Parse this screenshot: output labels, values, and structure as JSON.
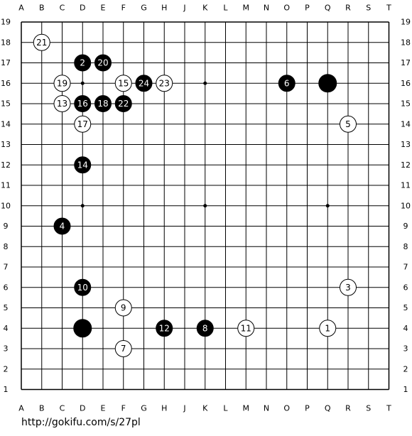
{
  "board": {
    "columns": [
      "A",
      "B",
      "C",
      "D",
      "E",
      "F",
      "G",
      "H",
      "J",
      "K",
      "L",
      "M",
      "N",
      "O",
      "P",
      "Q",
      "R",
      "S",
      "T"
    ],
    "rows": [
      19,
      18,
      17,
      16,
      15,
      14,
      13,
      12,
      11,
      10,
      9,
      8,
      7,
      6,
      5,
      4,
      3,
      2,
      1
    ],
    "stones": [
      {
        "col": "D",
        "row": 17,
        "color": "black",
        "label": "2"
      },
      {
        "col": "E",
        "row": 17,
        "color": "black",
        "label": "20"
      },
      {
        "col": "G",
        "row": 16,
        "color": "black",
        "label": "24"
      },
      {
        "col": "O",
        "row": 16,
        "color": "black",
        "label": "6"
      },
      {
        "col": "Q",
        "row": 16,
        "color": "black"
      },
      {
        "col": "D",
        "row": 15,
        "color": "black",
        "label": "16"
      },
      {
        "col": "E",
        "row": 15,
        "color": "black",
        "label": "18"
      },
      {
        "col": "F",
        "row": 15,
        "color": "black",
        "label": "22"
      },
      {
        "col": "D",
        "row": 12,
        "color": "black",
        "label": "14"
      },
      {
        "col": "C",
        "row": 9,
        "color": "black",
        "label": "4"
      },
      {
        "col": "D",
        "row": 6,
        "color": "black",
        "label": "10"
      },
      {
        "col": "D",
        "row": 4,
        "color": "black"
      },
      {
        "col": "H",
        "row": 4,
        "color": "black",
        "label": "12"
      },
      {
        "col": "K",
        "row": 4,
        "color": "black",
        "label": "8"
      },
      {
        "col": "B",
        "row": 18,
        "color": "white",
        "label": "21"
      },
      {
        "col": "C",
        "row": 16,
        "color": "white",
        "label": "19"
      },
      {
        "col": "F",
        "row": 16,
        "color": "white",
        "label": "15"
      },
      {
        "col": "H",
        "row": 16,
        "color": "white",
        "label": "23"
      },
      {
        "col": "C",
        "row": 15,
        "color": "white",
        "label": "13"
      },
      {
        "col": "D",
        "row": 14,
        "color": "white",
        "label": "17"
      },
      {
        "col": "R",
        "row": 14,
        "color": "white",
        "label": "5"
      },
      {
        "col": "R",
        "row": 6,
        "color": "white",
        "label": "3"
      },
      {
        "col": "F",
        "row": 5,
        "color": "white",
        "label": "9"
      },
      {
        "col": "M",
        "row": 4,
        "color": "white",
        "label": "11"
      },
      {
        "col": "Q",
        "row": 4,
        "color": "white",
        "label": "1"
      },
      {
        "col": "F",
        "row": 3,
        "color": "white",
        "label": "7"
      }
    ]
  },
  "footer": {
    "url": "http://gokifu.com/s/27pl"
  }
}
